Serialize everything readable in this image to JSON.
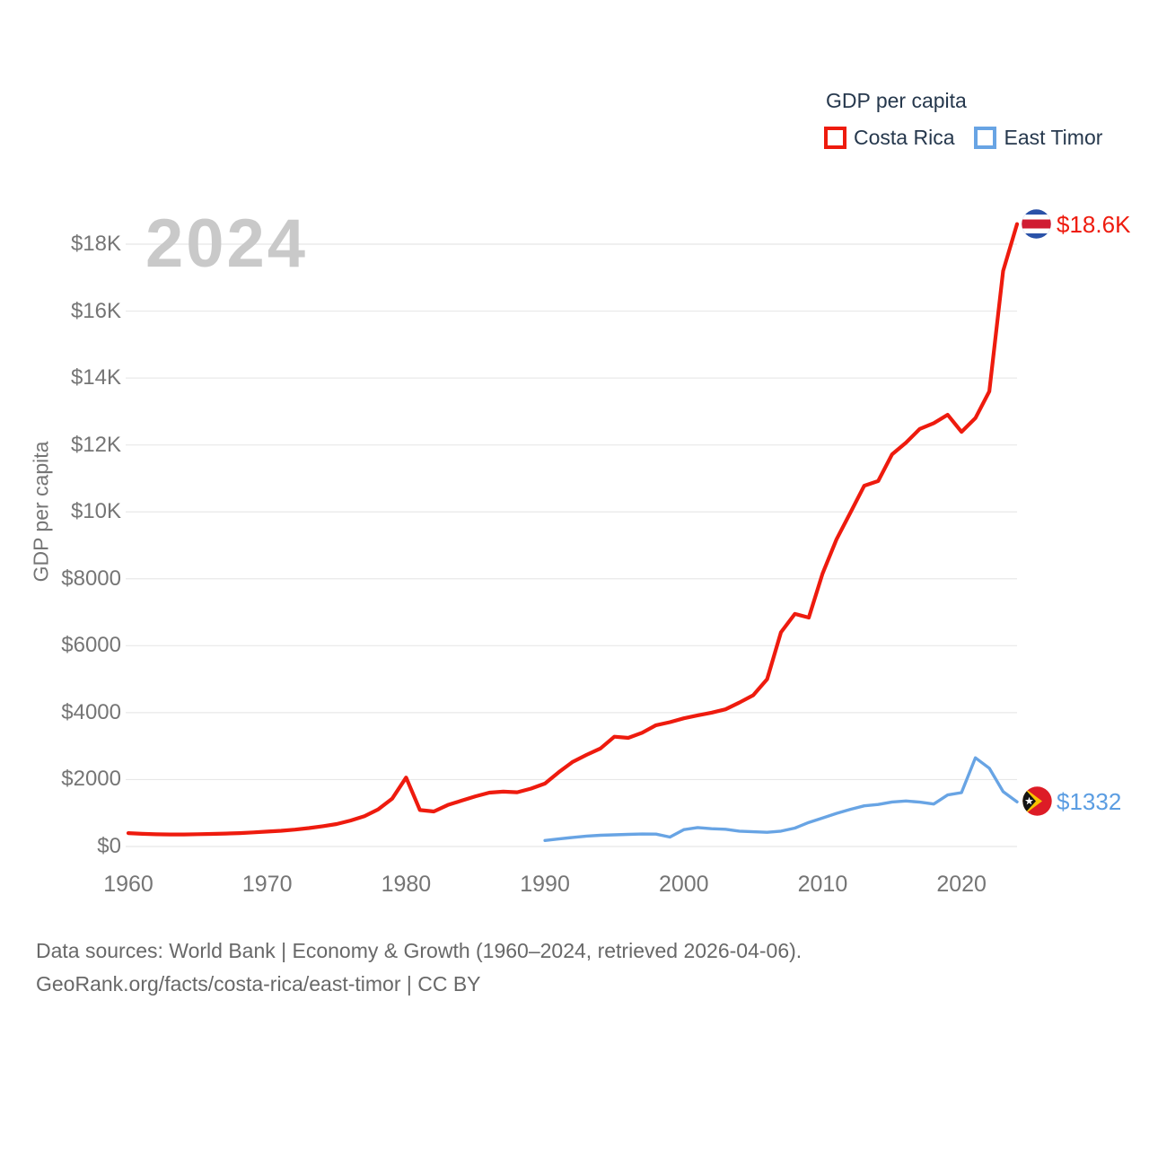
{
  "legend": {
    "title": "GDP per capita",
    "items": [
      {
        "label": "Costa Rica",
        "color": "#ee1b0e"
      },
      {
        "label": "East Timor",
        "color": "#68a4e4"
      }
    ]
  },
  "watermark": "2024",
  "footer": {
    "line1": "Data sources: World Bank | Economy & Growth (1960–2024, retrieved 2026-04-06).",
    "line2": "GeoRank.org/facts/costa-rica/east-timor | CC BY"
  },
  "chart_data": {
    "type": "line",
    "title": "GDP per capita",
    "xlabel": "",
    "ylabel": "GDP per capita",
    "xlim": [
      1960,
      2024
    ],
    "ylim": [
      0,
      18000
    ],
    "grid": true,
    "legend_position": "top-right",
    "x_ticks": [
      1960,
      1970,
      1980,
      1990,
      2000,
      2010,
      2020
    ],
    "x_tick_labels": [
      "1960",
      "1970",
      "1980",
      "1990",
      "2000",
      "2010",
      "2020"
    ],
    "y_ticks": [
      0,
      2000,
      4000,
      6000,
      8000,
      10000,
      12000,
      14000,
      16000,
      18000
    ],
    "y_tick_labels": [
      "$0",
      "$2000",
      "$4000",
      "$6000",
      "$8000",
      "$10K",
      "$12K",
      "$14K",
      "$16K",
      "$18K"
    ],
    "series": [
      {
        "name": "Costa Rica",
        "color": "#ee1b0e",
        "start_year": 1960,
        "end_label": "$18.6K",
        "end_value": 18600,
        "values": [
          400,
          378,
          366,
          360,
          360,
          368,
          376,
          386,
          400,
          420,
          445,
          470,
          505,
          550,
          605,
          670,
          775,
          905,
          1110,
          1430,
          2060,
          1090,
          1045,
          1240,
          1370,
          1500,
          1610,
          1640,
          1620,
          1730,
          1880,
          2220,
          2530,
          2740,
          2930,
          3280,
          3245,
          3400,
          3625,
          3715,
          3830,
          3920,
          4000,
          4100,
          4300,
          4520,
          5000,
          6400,
          6950,
          6840,
          8160,
          9180,
          9980,
          10780,
          10920,
          11720,
          12070,
          12480,
          12650,
          12900,
          12390,
          12800,
          13600,
          17200,
          18600
        ]
      },
      {
        "name": "East Timor",
        "color": "#68a4e4",
        "start_year": 1990,
        "end_label": "$1332",
        "end_value": 1332,
        "values": [
          180,
          225,
          270,
          310,
          335,
          350,
          362,
          372,
          370,
          283,
          505,
          565,
          530,
          515,
          460,
          440,
          425,
          460,
          550,
          720,
          850,
          990,
          1110,
          1215,
          1255,
          1330,
          1360,
          1325,
          1270,
          1540,
          1610,
          2650,
          2340,
          1640,
          1332
        ]
      }
    ]
  }
}
